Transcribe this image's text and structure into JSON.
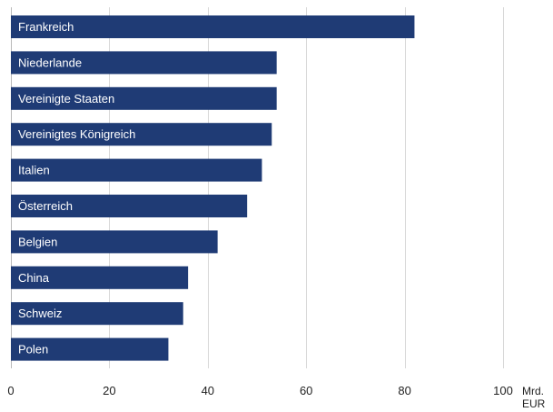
{
  "colors": {
    "bar": "#1f3b75",
    "bar_label": "#ffffff",
    "grid": "#d7d7d7",
    "axis_text": "#222222",
    "background": "#ffffff"
  },
  "chart_data": {
    "type": "bar",
    "orientation": "horizontal",
    "categories": [
      "Frankreich",
      "Niederlande",
      "Vereinigte Staaten",
      "Vereinigtes Königreich",
      "Italien",
      "Österreich",
      "Belgien",
      "China",
      "Schweiz",
      "Polen"
    ],
    "values": [
      82,
      54,
      54,
      53,
      51,
      48,
      42,
      36,
      35,
      32
    ],
    "x_ticks": [
      0,
      20,
      40,
      60,
      80,
      100
    ],
    "x_tick_labels": [
      "0",
      "20",
      "40",
      "60",
      "80",
      "100"
    ],
    "xlim": [
      0,
      100
    ],
    "unit_line1": "Mrd.",
    "unit_line2": "EUR",
    "grid": true,
    "legend": "none"
  }
}
